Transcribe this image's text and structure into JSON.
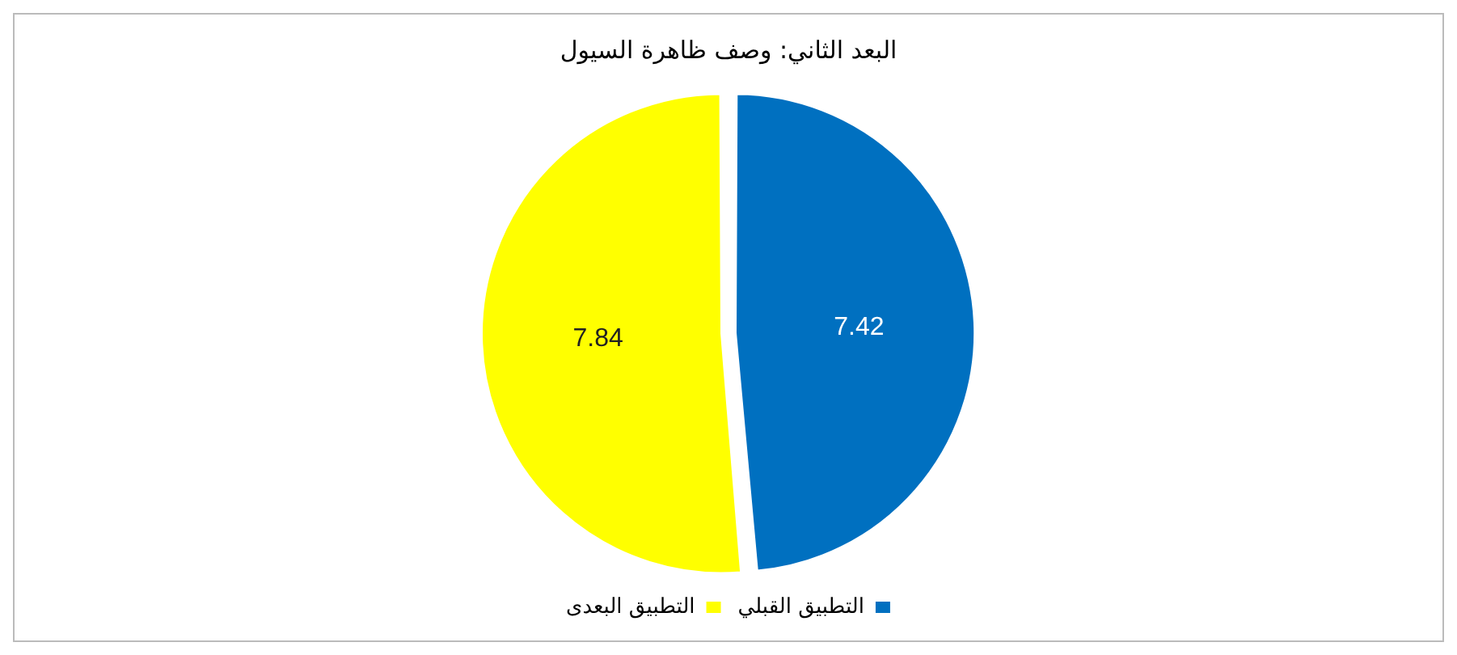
{
  "chart_data": {
    "type": "pie",
    "title": "البعد الثاني: وصف ظاهرة السيول",
    "categories": [
      "التطبيق القبلي",
      "التطبيق البعدى"
    ],
    "values": [
      7.42,
      7.84
    ],
    "colors": [
      "#0070c0",
      "#ffff00"
    ],
    "data_labels": true,
    "legend": "bottom"
  }
}
